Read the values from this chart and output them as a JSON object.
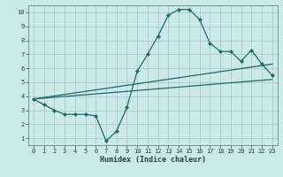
{
  "xlabel": "Humidex (Indice chaleur)",
  "bg_color": "#cce8e8",
  "line_color": "#1a6b6b",
  "grid_color": "#aacccc",
  "xlim": [
    -0.5,
    23.5
  ],
  "ylim": [
    0.5,
    10.5
  ],
  "xticks": [
    0,
    1,
    2,
    3,
    4,
    5,
    6,
    7,
    8,
    9,
    10,
    11,
    12,
    13,
    14,
    15,
    16,
    17,
    18,
    19,
    20,
    21,
    22,
    23
  ],
  "yticks": [
    1,
    2,
    3,
    4,
    5,
    6,
    7,
    8,
    9,
    10
  ],
  "main_x": [
    0,
    1,
    2,
    3,
    4,
    5,
    6,
    7,
    8,
    9,
    10,
    11,
    12,
    13,
    14,
    15,
    16,
    17,
    18,
    19,
    20,
    21,
    22,
    23
  ],
  "main_y": [
    3.8,
    3.4,
    3.0,
    2.7,
    2.7,
    2.7,
    2.6,
    0.8,
    1.5,
    3.2,
    5.8,
    7.0,
    8.3,
    9.8,
    10.2,
    10.2,
    9.5,
    7.8,
    7.2,
    7.2,
    6.5,
    7.3,
    6.3,
    5.5
  ],
  "line2_x": [
    0,
    23
  ],
  "line2_y": [
    3.8,
    6.3
  ],
  "line3_x": [
    0,
    23
  ],
  "line3_y": [
    3.8,
    5.2
  ]
}
